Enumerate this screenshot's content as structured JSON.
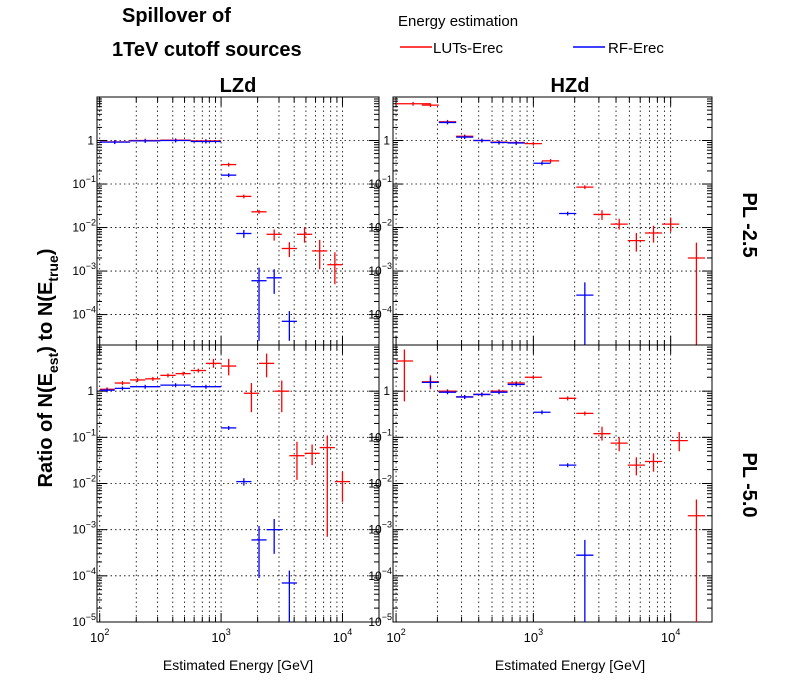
{
  "title_line1": "Spillover of",
  "title_line2": "1TeV cutoff sources",
  "legend": {
    "header": "Energy estimation",
    "entries": [
      {
        "label": "LUTs-Erec",
        "color": "#ff0000"
      },
      {
        "label": "RF-Erec",
        "color": "#0000ff"
      }
    ]
  },
  "columns": [
    "LZd",
    "HZd"
  ],
  "rows": [
    "PL -2.5",
    "PL -5.0"
  ],
  "ylabel_parts": {
    "a": "Ratio of N(E",
    "sub1": "est",
    "b": ") to N(E",
    "sub2": "true",
    "c": ")"
  },
  "xlabel": "Estimated Energy [GeV]",
  "x_tick_labels": [
    {
      "value": 100,
      "base": "10",
      "exp": "2"
    },
    {
      "value": 1000,
      "base": "10",
      "exp": "3"
    },
    {
      "value": 10000,
      "base": "10",
      "exp": "4"
    }
  ],
  "y_tick_labels": [
    {
      "value": 1,
      "base": "1",
      "exp": ""
    },
    {
      "value": 0.1,
      "base": "10",
      "exp": "−1"
    },
    {
      "value": 0.01,
      "base": "10",
      "exp": "−2"
    },
    {
      "value": 0.001,
      "base": "10",
      "exp": "−3"
    },
    {
      "value": 0.0001,
      "base": "10",
      "exp": "−4"
    },
    {
      "value": 1e-05,
      "base": "10",
      "exp": "−5"
    }
  ],
  "chart_data": [
    {
      "type": "scatter",
      "panel": "LZd / PL -2.5",
      "xscale": "log",
      "yscale": "log",
      "xlim": [
        95,
        20000
      ],
      "ylim": [
        2e-05,
        10
      ],
      "series": [
        {
          "name": "LUTs-Erec",
          "color": "#ff0000",
          "points": [
            {
              "x": 133,
              "y": 0.93,
              "xlo": 100,
              "xhi": 178
            },
            {
              "x": 237,
              "y": 1.0,
              "xlo": 178,
              "xhi": 316
            },
            {
              "x": 422,
              "y": 1.02,
              "xlo": 316,
              "xhi": 562
            },
            {
              "x": 750,
              "y": 0.98,
              "xlo": 562,
              "xhi": 1000
            },
            {
              "x": 1155,
              "y": 0.28,
              "xlo": 1000,
              "xhi": 1334
            },
            {
              "x": 1540,
              "y": 0.052,
              "xlo": 1334,
              "xhi": 1778
            },
            {
              "x": 2054,
              "y": 0.023,
              "xlo": 1778,
              "xhi": 2371
            },
            {
              "x": 2738,
              "y": 0.007,
              "xlo": 2371,
              "xhi": 3162,
              "ylo": 0.005,
              "yhi": 0.009
            },
            {
              "x": 3652,
              "y": 0.0033,
              "xlo": 3162,
              "xhi": 4217,
              "ylo": 0.0021,
              "yhi": 0.0046
            },
            {
              "x": 4870,
              "y": 0.007,
              "xlo": 4217,
              "xhi": 5623,
              "ylo": 0.0045,
              "yhi": 0.01
            },
            {
              "x": 6493,
              "y": 0.0029,
              "xlo": 5623,
              "xhi": 7499,
              "ylo": 0.0011,
              "yhi": 0.0052
            },
            {
              "x": 8659,
              "y": 0.0014,
              "xlo": 7499,
              "xhi": 10000,
              "ylo": 0.0005,
              "yhi": 0.0027
            }
          ]
        },
        {
          "name": "RF-Erec",
          "color": "#0000ff",
          "points": [
            {
              "x": 133,
              "y": 0.92,
              "xlo": 100,
              "xhi": 178
            },
            {
              "x": 237,
              "y": 0.98,
              "xlo": 178,
              "xhi": 316
            },
            {
              "x": 422,
              "y": 1.0,
              "xlo": 316,
              "xhi": 562
            },
            {
              "x": 750,
              "y": 0.95,
              "xlo": 562,
              "xhi": 1000
            },
            {
              "x": 1155,
              "y": 0.16,
              "xlo": 1000,
              "xhi": 1334
            },
            {
              "x": 1540,
              "y": 0.0073,
              "xlo": 1334,
              "xhi": 1778,
              "ylo": 0.0058,
              "yhi": 0.0088
            },
            {
              "x": 2054,
              "y": 0.0006,
              "xlo": 1778,
              "xhi": 2371,
              "ylo": 2.5e-05,
              "yhi": 0.0012
            },
            {
              "x": 2738,
              "y": 0.0007,
              "xlo": 2371,
              "xhi": 3162,
              "ylo": 0.0003,
              "yhi": 0.0011
            },
            {
              "x": 3652,
              "y": 7e-05,
              "xlo": 3162,
              "xhi": 4217,
              "ylo": 2.5e-05,
              "yhi": 0.00012
            }
          ]
        }
      ]
    },
    {
      "type": "scatter",
      "panel": "HZd / PL -2.5",
      "xscale": "log",
      "yscale": "log",
      "xlim": [
        95,
        20000
      ],
      "ylim": [
        2e-05,
        10
      ],
      "series": [
        {
          "name": "LUTs-Erec",
          "color": "#ff0000",
          "points": [
            {
              "x": 133,
              "y": 7,
              "xlo": 100,
              "xhi": 178
            },
            {
              "x": 178,
              "y": 6.5,
              "xlo": 154,
              "xhi": 205
            },
            {
              "x": 237,
              "y": 2.7,
              "xlo": 205,
              "xhi": 274
            },
            {
              "x": 316,
              "y": 1.25,
              "xlo": 274,
              "xhi": 365
            },
            {
              "x": 422,
              "y": 1.0,
              "xlo": 365,
              "xhi": 487
            },
            {
              "x": 562,
              "y": 0.92,
              "xlo": 487,
              "xhi": 649
            },
            {
              "x": 750,
              "y": 0.9,
              "xlo": 649,
              "xhi": 866
            },
            {
              "x": 1000,
              "y": 0.85,
              "xlo": 866,
              "xhi": 1155
            },
            {
              "x": 1334,
              "y": 0.34,
              "xlo": 1155,
              "xhi": 1540
            },
            {
              "x": 2371,
              "y": 0.085,
              "xlo": 2054,
              "xhi": 2738
            },
            {
              "x": 3162,
              "y": 0.02,
              "xlo": 2738,
              "xhi": 3652,
              "ylo": 0.015,
              "yhi": 0.025
            },
            {
              "x": 4217,
              "y": 0.012,
              "xlo": 3652,
              "xhi": 4870,
              "ylo": 0.009,
              "yhi": 0.016
            },
            {
              "x": 5623,
              "y": 0.005,
              "xlo": 4870,
              "xhi": 6493,
              "ylo": 0.0028,
              "yhi": 0.0075
            },
            {
              "x": 7499,
              "y": 0.0075,
              "xlo": 6493,
              "xhi": 8659,
              "ylo": 0.0045,
              "yhi": 0.011
            },
            {
              "x": 10000,
              "y": 0.012,
              "xlo": 8659,
              "xhi": 11548,
              "ylo": 0.008,
              "yhi": 0.017
            },
            {
              "x": 15400,
              "y": 0.002,
              "xlo": 13335,
              "xhi": 17783,
              "ylo": 2e-05,
              "yhi": 0.0045
            }
          ]
        },
        {
          "name": "RF-Erec",
          "color": "#0000ff",
          "points": [
            {
              "x": 237,
              "y": 2.6,
              "xlo": 205,
              "xhi": 274
            },
            {
              "x": 316,
              "y": 1.2,
              "xlo": 274,
              "xhi": 365
            },
            {
              "x": 422,
              "y": 1.0,
              "xlo": 365,
              "xhi": 487
            },
            {
              "x": 562,
              "y": 0.9,
              "xlo": 487,
              "xhi": 649
            },
            {
              "x": 750,
              "y": 0.88,
              "xlo": 649,
              "xhi": 866
            },
            {
              "x": 1155,
              "y": 0.3,
              "xlo": 1000,
              "xhi": 1334
            },
            {
              "x": 1778,
              "y": 0.021,
              "xlo": 1540,
              "xhi": 2054
            },
            {
              "x": 2371,
              "y": 0.00028,
              "xlo": 2054,
              "xhi": 2738,
              "ylo": 2e-05,
              "yhi": 0.00055
            }
          ]
        }
      ]
    },
    {
      "type": "scatter",
      "panel": "LZd / PL -5.0",
      "xscale": "log",
      "yscale": "log",
      "xlim": [
        95,
        20000
      ],
      "ylim": [
        1e-05,
        10
      ],
      "series": [
        {
          "name": "LUTs-Erec",
          "color": "#ff0000",
          "points": [
            {
              "x": 115,
              "y": 1.1,
              "xlo": 100,
              "xhi": 133
            },
            {
              "x": 154,
              "y": 1.5,
              "xlo": 133,
              "xhi": 178
            },
            {
              "x": 205,
              "y": 1.75,
              "xlo": 178,
              "xhi": 237
            },
            {
              "x": 274,
              "y": 1.85,
              "xlo": 237,
              "xhi": 316
            },
            {
              "x": 365,
              "y": 2.2,
              "xlo": 316,
              "xhi": 422
            },
            {
              "x": 487,
              "y": 2.4,
              "xlo": 422,
              "xhi": 562
            },
            {
              "x": 649,
              "y": 2.8,
              "xlo": 562,
              "xhi": 750
            },
            {
              "x": 866,
              "y": 4.0,
              "xlo": 750,
              "xhi": 1000,
              "ylo": 3.2,
              "yhi": 5.0
            },
            {
              "x": 1155,
              "y": 3.5,
              "xlo": 1000,
              "xhi": 1334,
              "ylo": 2.2,
              "yhi": 5.0
            },
            {
              "x": 1778,
              "y": 0.9,
              "xlo": 1540,
              "xhi": 2054,
              "ylo": 0.35,
              "yhi": 1.5
            },
            {
              "x": 2371,
              "y": 4.0,
              "xlo": 2054,
              "xhi": 2738,
              "ylo": 2.0,
              "yhi": 6.5
            },
            {
              "x": 3162,
              "y": 1.0,
              "xlo": 2738,
              "xhi": 3652,
              "ylo": 0.35,
              "yhi": 1.7
            },
            {
              "x": 4217,
              "y": 0.04,
              "xlo": 3652,
              "xhi": 4870,
              "ylo": 0.012,
              "yhi": 0.08
            },
            {
              "x": 5623,
              "y": 0.045,
              "xlo": 4870,
              "xhi": 6493,
              "ylo": 0.025,
              "yhi": 0.07
            },
            {
              "x": 7499,
              "y": 0.06,
              "xlo": 6493,
              "xhi": 8659,
              "ylo": 0.0007,
              "yhi": 0.11
            },
            {
              "x": 10000,
              "y": 0.011,
              "xlo": 8659,
              "xhi": 11548,
              "ylo": 0.004,
              "yhi": 0.018
            }
          ]
        },
        {
          "name": "RF-Erec",
          "color": "#0000ff",
          "points": [
            {
              "x": 115,
              "y": 1.05,
              "xlo": 100,
              "xhi": 133
            },
            {
              "x": 154,
              "y": 1.15,
              "xlo": 133,
              "xhi": 178
            },
            {
              "x": 237,
              "y": 1.25,
              "xlo": 178,
              "xhi": 316
            },
            {
              "x": 422,
              "y": 1.35,
              "xlo": 316,
              "xhi": 562
            },
            {
              "x": 750,
              "y": 1.25,
              "xlo": 562,
              "xhi": 1000
            },
            {
              "x": 1155,
              "y": 0.16,
              "xlo": 1000,
              "xhi": 1334
            },
            {
              "x": 1540,
              "y": 0.011,
              "xlo": 1334,
              "xhi": 1778,
              "ylo": 0.009,
              "yhi": 0.013
            },
            {
              "x": 2054,
              "y": 0.0006,
              "xlo": 1778,
              "xhi": 2371,
              "ylo": 9e-05,
              "yhi": 0.0012
            },
            {
              "x": 2738,
              "y": 0.001,
              "xlo": 2371,
              "xhi": 3162,
              "ylo": 0.0003,
              "yhi": 0.0017
            },
            {
              "x": 3652,
              "y": 7e-05,
              "xlo": 3162,
              "xhi": 4217,
              "ylo": 1e-05,
              "yhi": 0.00013
            }
          ]
        }
      ]
    },
    {
      "type": "scatter",
      "panel": "HZd / PL -5.0",
      "xscale": "log",
      "yscale": "log",
      "xlim": [
        95,
        20000
      ],
      "ylim": [
        1e-05,
        10
      ],
      "series": [
        {
          "name": "LUTs-Erec",
          "color": "#ff0000",
          "points": [
            {
              "x": 115,
              "y": 4.5,
              "xlo": 100,
              "xhi": 133,
              "ylo": 0.6,
              "yhi": 8
            },
            {
              "x": 178,
              "y": 1.6,
              "xlo": 154,
              "xhi": 205,
              "ylo": 1.1,
              "yhi": 2.2
            },
            {
              "x": 237,
              "y": 1.0,
              "xlo": 205,
              "xhi": 274
            },
            {
              "x": 316,
              "y": 0.75,
              "xlo": 274,
              "xhi": 365
            },
            {
              "x": 422,
              "y": 0.85,
              "xlo": 365,
              "xhi": 487
            },
            {
              "x": 562,
              "y": 1.0,
              "xlo": 487,
              "xhi": 649
            },
            {
              "x": 750,
              "y": 1.5,
              "xlo": 649,
              "xhi": 866
            },
            {
              "x": 1000,
              "y": 2.0,
              "xlo": 866,
              "xhi": 1155
            },
            {
              "x": 1778,
              "y": 0.7,
              "xlo": 1540,
              "xhi": 2054
            },
            {
              "x": 2371,
              "y": 0.33,
              "xlo": 2054,
              "xhi": 2738
            },
            {
              "x": 3162,
              "y": 0.12,
              "xlo": 2738,
              "xhi": 3652,
              "ylo": 0.085,
              "yhi": 0.17
            },
            {
              "x": 4217,
              "y": 0.075,
              "xlo": 3652,
              "xhi": 4870,
              "ylo": 0.05,
              "yhi": 0.1
            },
            {
              "x": 5623,
              "y": 0.025,
              "xlo": 4870,
              "xhi": 6493,
              "ylo": 0.015,
              "yhi": 0.037
            },
            {
              "x": 7499,
              "y": 0.03,
              "xlo": 6493,
              "xhi": 8659,
              "ylo": 0.018,
              "yhi": 0.045
            },
            {
              "x": 11548,
              "y": 0.085,
              "xlo": 10000,
              "xhi": 13335,
              "ylo": 0.05,
              "yhi": 0.13
            },
            {
              "x": 15400,
              "y": 0.002,
              "xlo": 13335,
              "xhi": 17783,
              "ylo": 1e-05,
              "yhi": 0.0045
            }
          ]
        },
        {
          "name": "RF-Erec",
          "color": "#0000ff",
          "points": [
            {
              "x": 178,
              "y": 1.55,
              "xlo": 154,
              "xhi": 205,
              "ylo": 1.2,
              "yhi": 2.0
            },
            {
              "x": 237,
              "y": 0.95,
              "xlo": 205,
              "xhi": 274
            },
            {
              "x": 316,
              "y": 0.75,
              "xlo": 274,
              "xhi": 365
            },
            {
              "x": 422,
              "y": 0.85,
              "xlo": 365,
              "xhi": 487
            },
            {
              "x": 562,
              "y": 0.95,
              "xlo": 487,
              "xhi": 649
            },
            {
              "x": 750,
              "y": 1.4,
              "xlo": 649,
              "xhi": 866
            },
            {
              "x": 1155,
              "y": 0.35,
              "xlo": 1000,
              "xhi": 1334
            },
            {
              "x": 1778,
              "y": 0.025,
              "xlo": 1540,
              "xhi": 2054
            },
            {
              "x": 2371,
              "y": 0.00028,
              "xlo": 2054,
              "xhi": 2738,
              "ylo": 1e-05,
              "yhi": 0.0006
            }
          ]
        }
      ]
    }
  ]
}
